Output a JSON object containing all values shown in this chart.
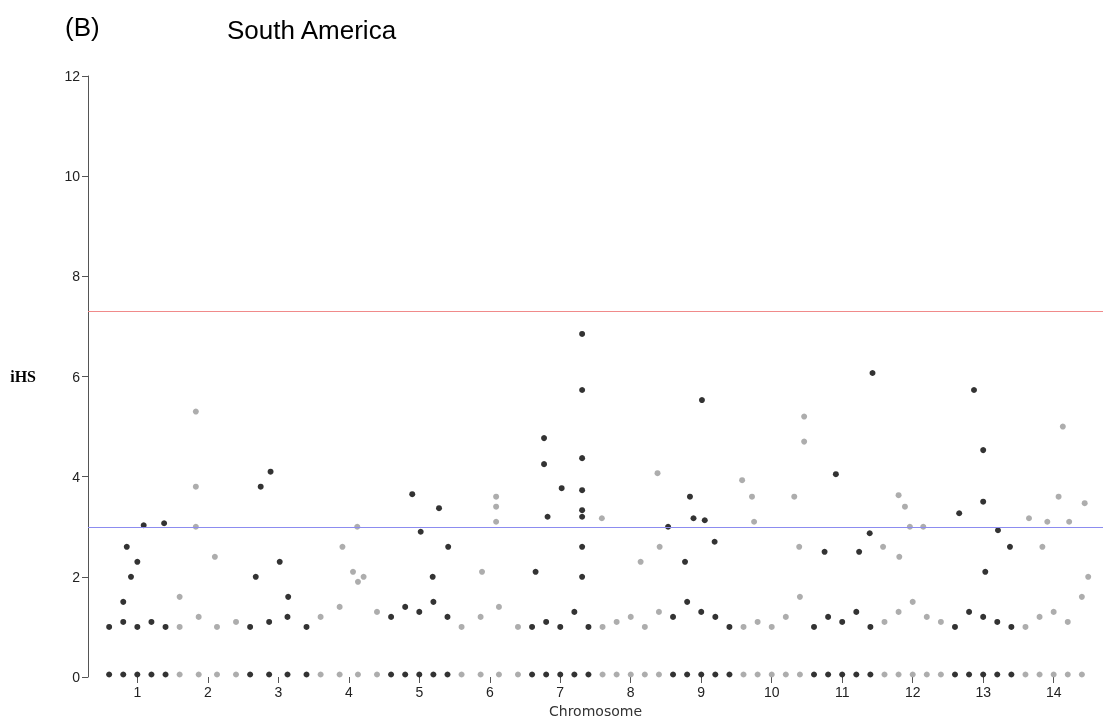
{
  "chart_data": {
    "type": "scatter",
    "title": "South America",
    "annotations": [
      "(B)"
    ],
    "xlabel": "Chromosome",
    "ylabel": "iHS",
    "ylim": [
      0,
      12
    ],
    "yticks": [
      0,
      2,
      4,
      6,
      8,
      10,
      12
    ],
    "xlim": [
      0.3,
      14.7
    ],
    "xticks": [
      1,
      2,
      3,
      4,
      5,
      6,
      7,
      8,
      9,
      10,
      11,
      12,
      13,
      14
    ],
    "grid": false,
    "marker": "circle",
    "ref_lines": [
      {
        "axis": "y",
        "value": 7.3,
        "color": "#f08a8a"
      },
      {
        "axis": "y",
        "value": 3.0,
        "color": "#8c8cf0"
      }
    ],
    "series": [
      {
        "color": "#000000",
        "x": [
          0.6,
          0.8,
          1.0,
          1.2,
          1.4,
          0.6,
          0.8,
          1.0,
          1.2,
          1.4,
          1.09,
          1.38,
          0.85,
          1.0,
          0.91,
          0.8
        ],
        "values": [
          0.05,
          0.05,
          0.05,
          0.05,
          0.05,
          1.0,
          1.1,
          1.0,
          1.1,
          1.0,
          3.03,
          3.07,
          2.6,
          2.3,
          2.0,
          1.5
        ]
      },
      {
        "color": "#999999",
        "x": [
          1.6,
          1.87,
          2.13,
          2.4,
          1.6,
          1.87,
          2.13,
          2.4,
          1.83,
          1.83,
          1.83,
          2.1,
          1.6
        ],
        "values": [
          0.05,
          0.05,
          0.05,
          0.05,
          1.0,
          1.2,
          1.0,
          1.1,
          5.3,
          3.8,
          3.0,
          2.4,
          1.6
        ]
      },
      {
        "color": "#000000",
        "x": [
          2.6,
          2.87,
          3.13,
          3.4,
          2.6,
          2.87,
          3.13,
          3.4,
          2.75,
          2.89,
          3.02,
          2.68,
          3.14
        ],
        "values": [
          0.05,
          0.05,
          0.05,
          0.05,
          1.0,
          1.1,
          1.2,
          1.0,
          3.8,
          4.1,
          2.3,
          2.0,
          1.6
        ]
      },
      {
        "color": "#999999",
        "x": [
          3.6,
          3.87,
          4.13,
          4.4,
          3.6,
          3.87,
          4.13,
          4.4,
          4.12,
          3.91,
          4.06,
          4.21
        ],
        "values": [
          0.05,
          0.05,
          0.05,
          0.05,
          1.2,
          1.4,
          1.9,
          1.3,
          3.0,
          2.6,
          2.1,
          2.0
        ]
      },
      {
        "color": "#000000",
        "x": [
          4.6,
          4.8,
          5.0,
          5.2,
          5.4,
          4.6,
          4.8,
          5.0,
          5.2,
          5.4,
          4.9,
          5.28,
          5.02,
          5.41,
          5.19
        ],
        "values": [
          0.05,
          0.05,
          0.05,
          0.05,
          0.05,
          1.2,
          1.4,
          1.3,
          1.5,
          1.2,
          3.65,
          3.37,
          2.9,
          2.6,
          2.0
        ]
      },
      {
        "color": "#999999",
        "x": [
          5.6,
          5.87,
          6.13,
          6.4,
          5.6,
          5.87,
          6.13,
          6.4,
          6.09,
          6.09,
          6.09,
          5.89
        ],
        "values": [
          0.05,
          0.05,
          0.05,
          0.05,
          1.0,
          1.2,
          1.4,
          1.0,
          3.6,
          3.4,
          3.1,
          2.1
        ]
      },
      {
        "color": "#000000",
        "x": [
          6.6,
          6.8,
          7.0,
          7.2,
          7.4,
          6.6,
          6.8,
          7.0,
          7.2,
          7.4,
          7.31,
          7.31,
          7.31,
          7.31,
          7.31,
          7.31,
          7.31,
          7.31,
          6.77,
          6.77,
          7.02,
          6.82,
          6.65
        ],
        "values": [
          0.05,
          0.05,
          0.05,
          0.05,
          0.05,
          1.0,
          1.1,
          1.0,
          1.3,
          1.0,
          6.85,
          5.73,
          4.37,
          3.73,
          3.33,
          3.2,
          2.6,
          2.0,
          4.77,
          4.25,
          3.77,
          3.2,
          2.1
        ]
      },
      {
        "color": "#999999",
        "x": [
          7.6,
          7.8,
          8.0,
          8.2,
          8.4,
          7.6,
          7.8,
          8.0,
          8.2,
          8.4,
          8.38,
          7.59,
          8.14,
          8.41
        ],
        "values": [
          0.05,
          0.05,
          0.05,
          0.05,
          0.05,
          1.0,
          1.1,
          1.2,
          1.0,
          1.3,
          4.07,
          3.17,
          2.3,
          2.6
        ]
      },
      {
        "color": "#000000",
        "x": [
          8.6,
          8.8,
          9.0,
          9.2,
          9.4,
          8.6,
          8.8,
          9.0,
          9.2,
          9.4,
          9.01,
          8.84,
          8.89,
          9.05,
          8.53,
          9.19,
          8.77
        ],
        "values": [
          0.05,
          0.05,
          0.05,
          0.05,
          0.05,
          1.2,
          1.5,
          1.3,
          1.2,
          1.0,
          5.53,
          3.6,
          3.17,
          3.13,
          3.0,
          2.7,
          2.3
        ]
      },
      {
        "color": "#999999",
        "x": [
          9.6,
          9.8,
          10.0,
          10.2,
          10.4,
          9.6,
          9.8,
          10.0,
          10.2,
          10.4,
          10.46,
          10.46,
          9.58,
          9.72,
          10.32,
          9.75,
          10.39
        ],
        "values": [
          0.05,
          0.05,
          0.05,
          0.05,
          0.05,
          1.0,
          1.1,
          1.0,
          1.2,
          1.6,
          5.2,
          4.7,
          3.93,
          3.6,
          3.6,
          3.1,
          2.6
        ]
      },
      {
        "color": "#000000",
        "x": [
          10.6,
          10.8,
          11.0,
          11.2,
          11.4,
          10.6,
          10.8,
          11.0,
          11.2,
          11.4,
          10.91,
          11.43,
          11.39,
          10.75,
          11.24
        ],
        "values": [
          0.05,
          0.05,
          0.05,
          0.05,
          0.05,
          1.0,
          1.2,
          1.1,
          1.3,
          1.0,
          4.05,
          6.07,
          2.87,
          2.5,
          2.5
        ]
      },
      {
        "color": "#999999",
        "x": [
          11.6,
          11.8,
          12.0,
          12.2,
          12.4,
          11.6,
          11.8,
          12.0,
          12.2,
          12.4,
          11.8,
          11.89,
          11.96,
          12.15,
          11.58,
          11.81
        ],
        "values": [
          0.05,
          0.05,
          0.05,
          0.05,
          0.05,
          1.1,
          1.3,
          1.5,
          1.2,
          1.1,
          3.63,
          3.4,
          3.0,
          3.0,
          2.6,
          2.4
        ]
      },
      {
        "color": "#000000",
        "x": [
          12.6,
          12.8,
          13.0,
          13.2,
          13.4,
          12.6,
          12.8,
          13.0,
          13.2,
          13.4,
          12.87,
          13.0,
          13.0,
          12.66,
          13.21,
          13.38,
          13.03
        ],
        "values": [
          0.05,
          0.05,
          0.05,
          0.05,
          0.05,
          1.0,
          1.3,
          1.2,
          1.1,
          1.0,
          5.73,
          4.53,
          3.5,
          3.27,
          2.93,
          2.6,
          2.1
        ]
      },
      {
        "color": "#999999",
        "x": [
          13.6,
          13.8,
          14.0,
          14.2,
          14.4,
          13.6,
          13.8,
          14.0,
          14.2,
          14.4,
          14.13,
          14.07,
          13.65,
          14.44,
          14.22,
          13.91,
          13.84,
          14.49
        ],
        "values": [
          0.05,
          0.05,
          0.05,
          0.05,
          0.05,
          1.0,
          1.2,
          1.3,
          1.1,
          1.6,
          5.0,
          3.6,
          3.17,
          3.47,
          3.1,
          3.1,
          2.6,
          2.0
        ]
      }
    ]
  }
}
